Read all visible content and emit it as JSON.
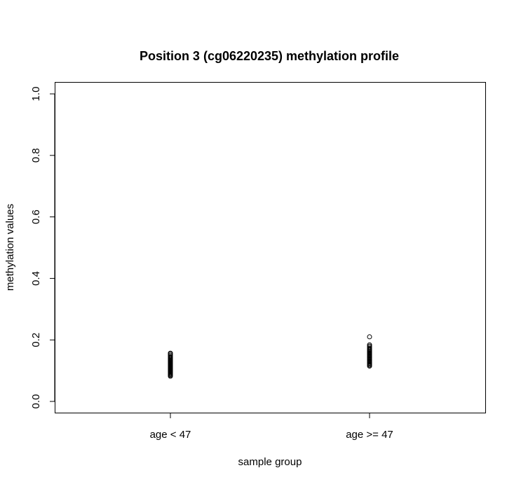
{
  "chart_data": {
    "type": "scatter",
    "title": "Position 3 (cg06220235) methylation profile",
    "xlabel": "sample group",
    "ylabel": "methylation values",
    "categories": [
      "age < 47",
      "age >= 47"
    ],
    "ylim": [
      0.0,
      1.0
    ],
    "yticks": [
      "0.0",
      "0.2",
      "0.4",
      "0.6",
      "0.8",
      "1.0"
    ],
    "grid": false,
    "series": [
      {
        "category": "age < 47",
        "values": [
          0.082,
          0.085,
          0.088,
          0.09,
          0.093,
          0.095,
          0.097,
          0.099,
          0.101,
          0.103,
          0.105,
          0.107,
          0.109,
          0.111,
          0.113,
          0.115,
          0.117,
          0.119,
          0.121,
          0.123,
          0.125,
          0.127,
          0.129,
          0.131,
          0.133,
          0.135,
          0.137,
          0.14,
          0.143,
          0.146,
          0.15,
          0.154,
          0.157
        ]
      },
      {
        "category": "age >= 47",
        "values": [
          0.115,
          0.118,
          0.121,
          0.124,
          0.127,
          0.13,
          0.133,
          0.136,
          0.139,
          0.142,
          0.145,
          0.148,
          0.151,
          0.154,
          0.157,
          0.16,
          0.163,
          0.166,
          0.169,
          0.172,
          0.176,
          0.18,
          0.184,
          0.21
        ]
      }
    ]
  }
}
